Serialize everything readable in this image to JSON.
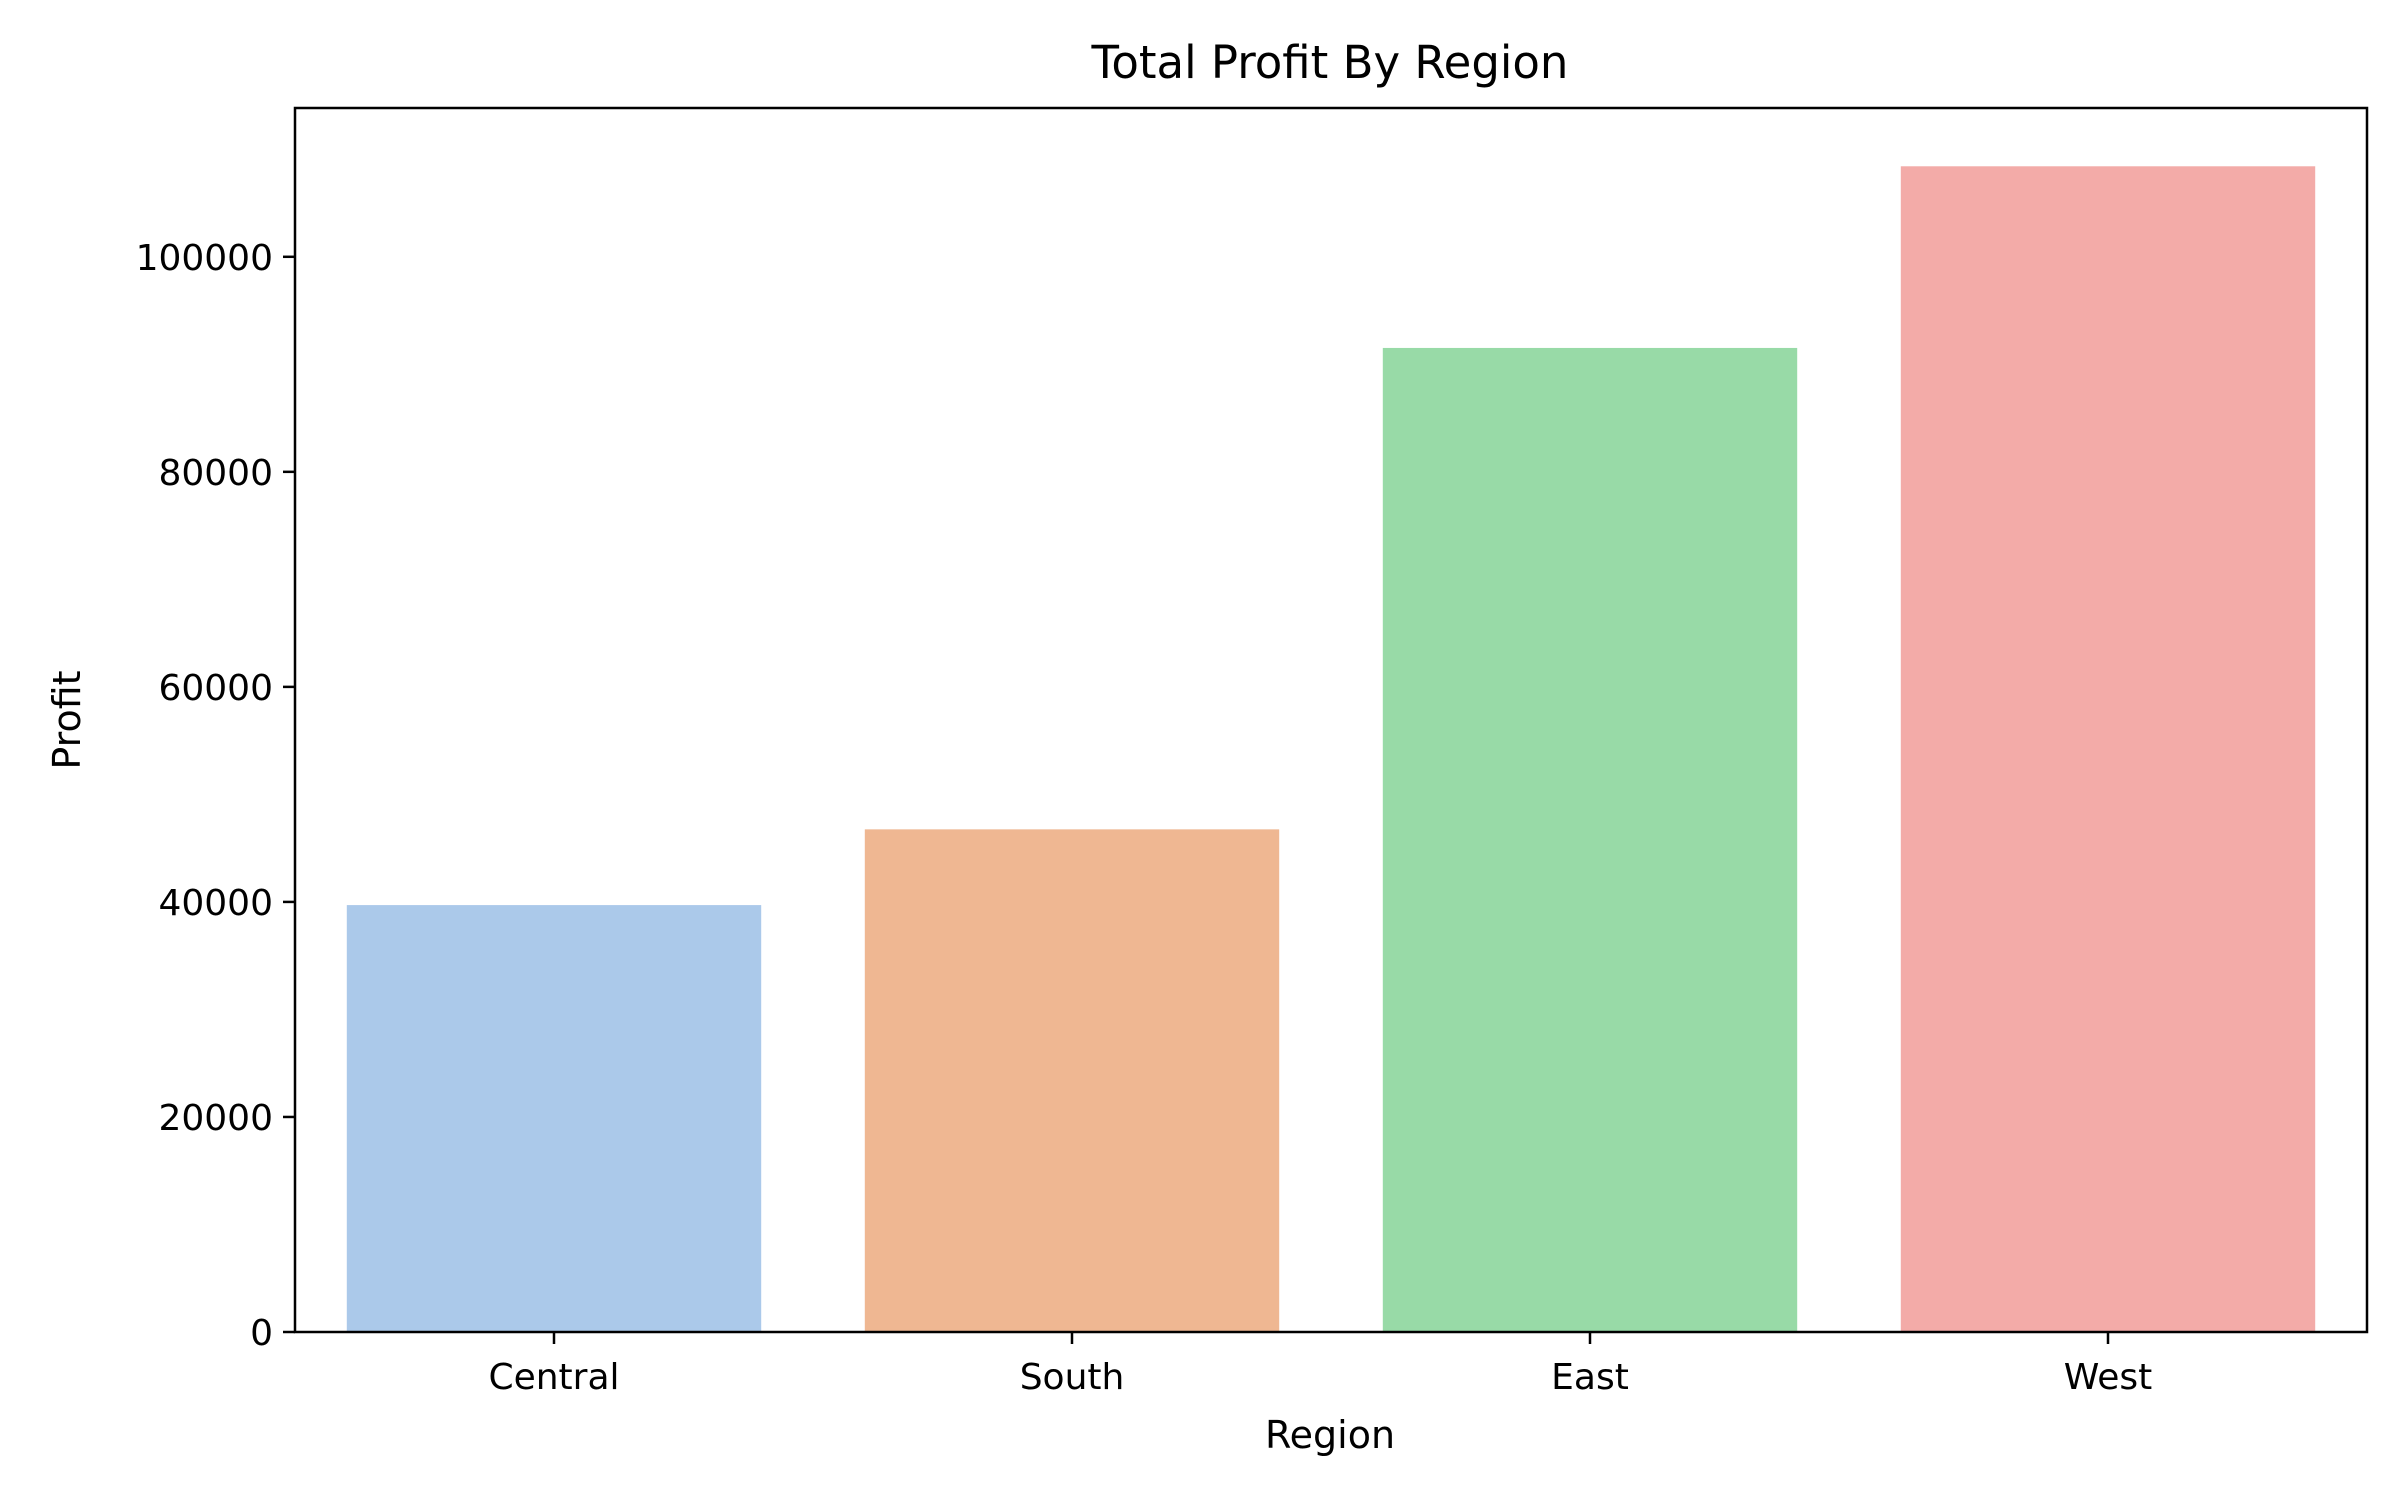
{
  "chart_data": {
    "type": "bar",
    "title": "Total Profit By Region",
    "xlabel": "Region",
    "ylabel": "Profit",
    "categories": [
      "Central",
      "South",
      "East",
      "West"
    ],
    "values": [
      39706,
      46749,
      91523,
      108418
    ],
    "colors": [
      "#abc9ea",
      "#efb792",
      "#98daa7",
      "#f3aba8"
    ],
    "yticks": [
      0,
      20000,
      40000,
      60000,
      80000,
      100000
    ],
    "ylim": [
      0,
      113839
    ],
    "grid": false,
    "legend": "none"
  }
}
